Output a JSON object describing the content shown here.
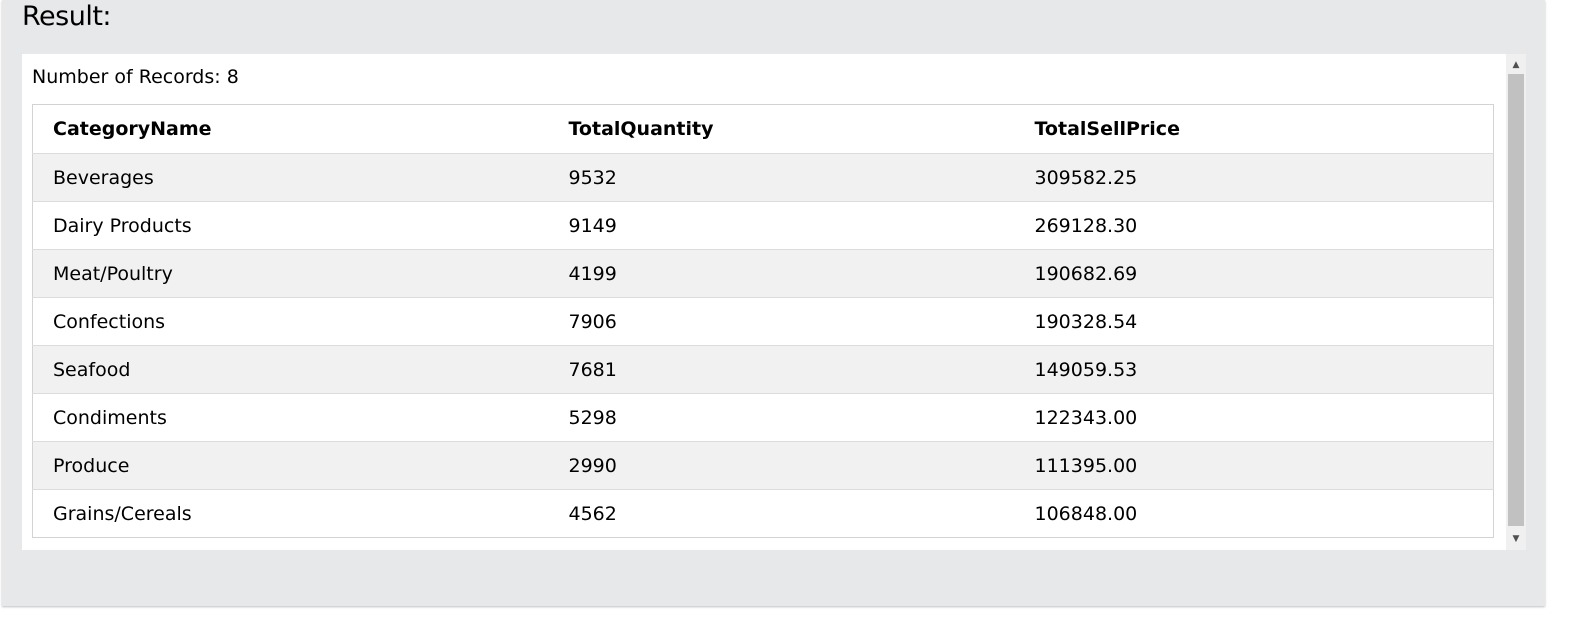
{
  "heading": "Result:",
  "records": {
    "label": "Number of Records: 8"
  },
  "table": {
    "columns": [
      "CategoryName",
      "TotalQuantity",
      "TotalSellPrice"
    ],
    "rows": [
      [
        "Beverages",
        "9532",
        "309582.25"
      ],
      [
        "Dairy Products",
        "9149",
        "269128.30"
      ],
      [
        "Meat/Poultry",
        "4199",
        "190682.69"
      ],
      [
        "Confections",
        "7906",
        "190328.54"
      ],
      [
        "Seafood",
        "7681",
        "149059.53"
      ],
      [
        "Condiments",
        "5298",
        "122343.00"
      ],
      [
        "Produce",
        "2990",
        "111395.00"
      ],
      [
        "Grains/Cereals",
        "4562",
        "106848.00"
      ]
    ]
  },
  "scrollbar": {
    "up_icon": "scroll-up-arrow-icon",
    "down_icon": "scroll-down-arrow-icon",
    "up_glyph": "▲",
    "down_glyph": "▼"
  }
}
